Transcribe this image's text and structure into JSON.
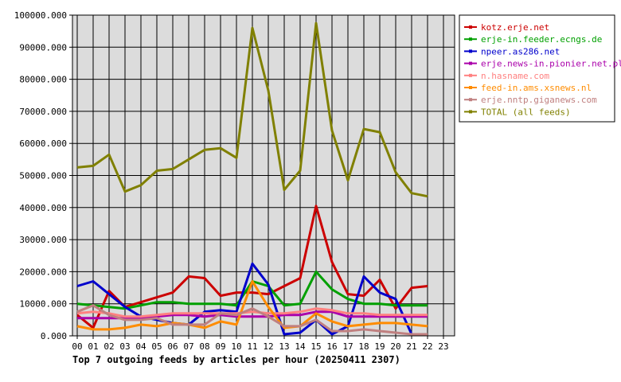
{
  "chart_data": {
    "type": "line",
    "caption": "Top 7 outgoing feeds by articles per hour (20250411 2307)",
    "x_ticks": [
      "00",
      "01",
      "02",
      "03",
      "04",
      "05",
      "06",
      "07",
      "08",
      "09",
      "10",
      "11",
      "12",
      "13",
      "14",
      "15",
      "16",
      "17",
      "18",
      "19",
      "20",
      "21",
      "22",
      "23"
    ],
    "y_ticks": [
      "0.000",
      "10000.000",
      "20000.000",
      "30000.000",
      "40000.000",
      "50000.000",
      "60000.000",
      "70000.000",
      "80000.000",
      "90000.000",
      "100000.000"
    ],
    "ylim": [
      0,
      100000
    ],
    "grid": true,
    "plot_background": "#dcdcdc",
    "legend_position": "right",
    "series": [
      {
        "name": "kotz.erje.net",
        "color": "#cc0000",
        "values": [
          6500,
          2500,
          14000,
          9000,
          10500,
          12000,
          13500,
          18500,
          18000,
          12500,
          13500,
          13500,
          13000,
          15500,
          18000,
          40500,
          23000,
          13000,
          12500,
          17500,
          8500,
          15000,
          15500
        ]
      },
      {
        "name": "erje-in.feeder.ecngs.de",
        "color": "#00a000",
        "values": [
          10000,
          9500,
          9000,
          8500,
          9500,
          10500,
          10500,
          10000,
          10000,
          10000,
          9500,
          17000,
          15500,
          9500,
          10000,
          20000,
          14500,
          11500,
          10000,
          10000,
          9500,
          9500,
          9500
        ]
      },
      {
        "name": "npeer.as286.net",
        "color": "#0000cc",
        "values": [
          15500,
          17000,
          13000,
          9000,
          6000,
          5000,
          4000,
          3500,
          7500,
          8000,
          7500,
          22500,
          16000,
          500,
          1000,
          5000,
          500,
          3000,
          18500,
          13500,
          11500,
          500,
          500
        ]
      },
      {
        "name": "erje.news-in.pionier.net.pl",
        "color": "#aa00aa",
        "values": [
          5500,
          5500,
          5500,
          5500,
          5500,
          6000,
          6500,
          6500,
          6000,
          6500,
          6000,
          6000,
          6000,
          6500,
          6500,
          7500,
          7500,
          6000,
          6000,
          6000,
          6000,
          6000,
          6000
        ]
      },
      {
        "name": "n.hasname.com",
        "color": "#ff8080",
        "values": [
          7000,
          7500,
          7000,
          6000,
          6000,
          6500,
          7000,
          7000,
          7000,
          7000,
          7000,
          7500,
          7000,
          7000,
          7500,
          8500,
          8000,
          7000,
          7000,
          6500,
          6500,
          6500,
          6500
        ]
      },
      {
        "name": "feed-in.ams.xsnews.nl",
        "color": "#ff8c00",
        "values": [
          3000,
          2000,
          2000,
          2500,
          3500,
          3000,
          4000,
          3500,
          2500,
          4500,
          3500,
          17000,
          9000,
          2500,
          3000,
          7000,
          4500,
          3000,
          3500,
          4000,
          4000,
          3500,
          3000
        ]
      },
      {
        "name": "erje.nntp.giganews.com",
        "color": "#c08080",
        "values": [
          7500,
          9500,
          6500,
          5000,
          5000,
          5500,
          3500,
          3500,
          3500,
          7000,
          6500,
          8500,
          6000,
          3000,
          3000,
          5000,
          1500,
          1500,
          2000,
          1500,
          1000,
          500,
          500
        ]
      },
      {
        "name": "TOTAL (all feeds)",
        "color": "#808000",
        "values": [
          52500,
          53000,
          56500,
          45000,
          47000,
          51500,
          52000,
          55000,
          58000,
          58500,
          55500,
          96000,
          76500,
          45500,
          51500,
          97500,
          64000,
          48500,
          64500,
          63500,
          51000,
          44500,
          43500
        ]
      }
    ]
  }
}
